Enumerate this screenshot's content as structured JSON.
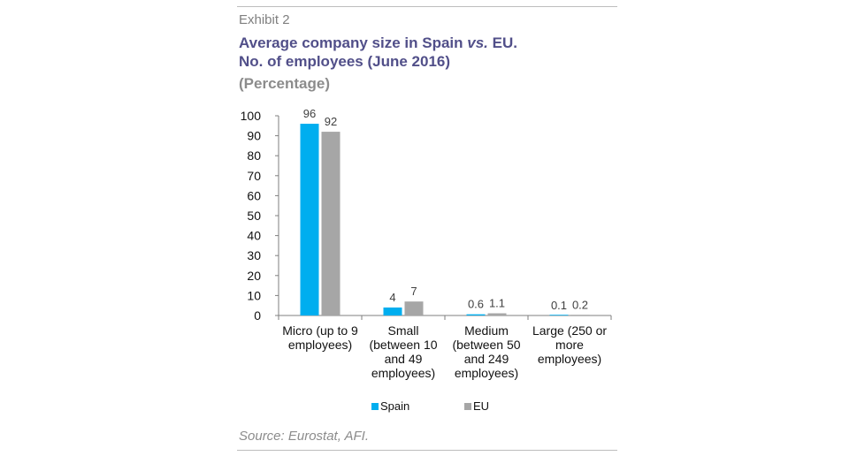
{
  "header": {
    "exhibit": "Exhibit 2",
    "title_line1_pre": "Average company size in Spain ",
    "title_line1_vs": "vs.",
    "title_line1_post": " EU.",
    "title_line2": "No. of employees (June 2016)",
    "subtitle": "(Percentage)"
  },
  "source": "Source: Eurostat, AFI.",
  "colors": {
    "spain": "#00aeef",
    "eu": "#a6a6a6",
    "title": "#514f89"
  },
  "chart_data": {
    "type": "bar",
    "title": "Average company size in Spain vs. EU. No. of employees (June 2016)",
    "subtitle": "(Percentage)",
    "categories": [
      [
        "Micro (up to 9",
        "employees)"
      ],
      [
        "Small",
        "(between 10",
        "and 49",
        "employees)"
      ],
      [
        "Medium",
        "(between 50",
        "and 249",
        "employees)"
      ],
      [
        "Large (250 or",
        "more",
        "employees)"
      ]
    ],
    "series": [
      {
        "name": "Spain",
        "values": [
          96,
          4,
          0.6,
          0.1
        ],
        "labels": [
          "96",
          "4",
          "0.6",
          "0.1"
        ]
      },
      {
        "name": "EU",
        "values": [
          92,
          7,
          1.1,
          0.2
        ],
        "labels": [
          "92",
          "7",
          "1.1",
          "0.2"
        ]
      }
    ],
    "ylim": [
      0,
      100
    ],
    "yticks": [
      "0",
      "10",
      "20",
      "30",
      "40",
      "50",
      "60",
      "70",
      "80",
      "90",
      "100"
    ],
    "xlabel": "",
    "ylabel": "",
    "grid": false,
    "legend": "bottom"
  }
}
